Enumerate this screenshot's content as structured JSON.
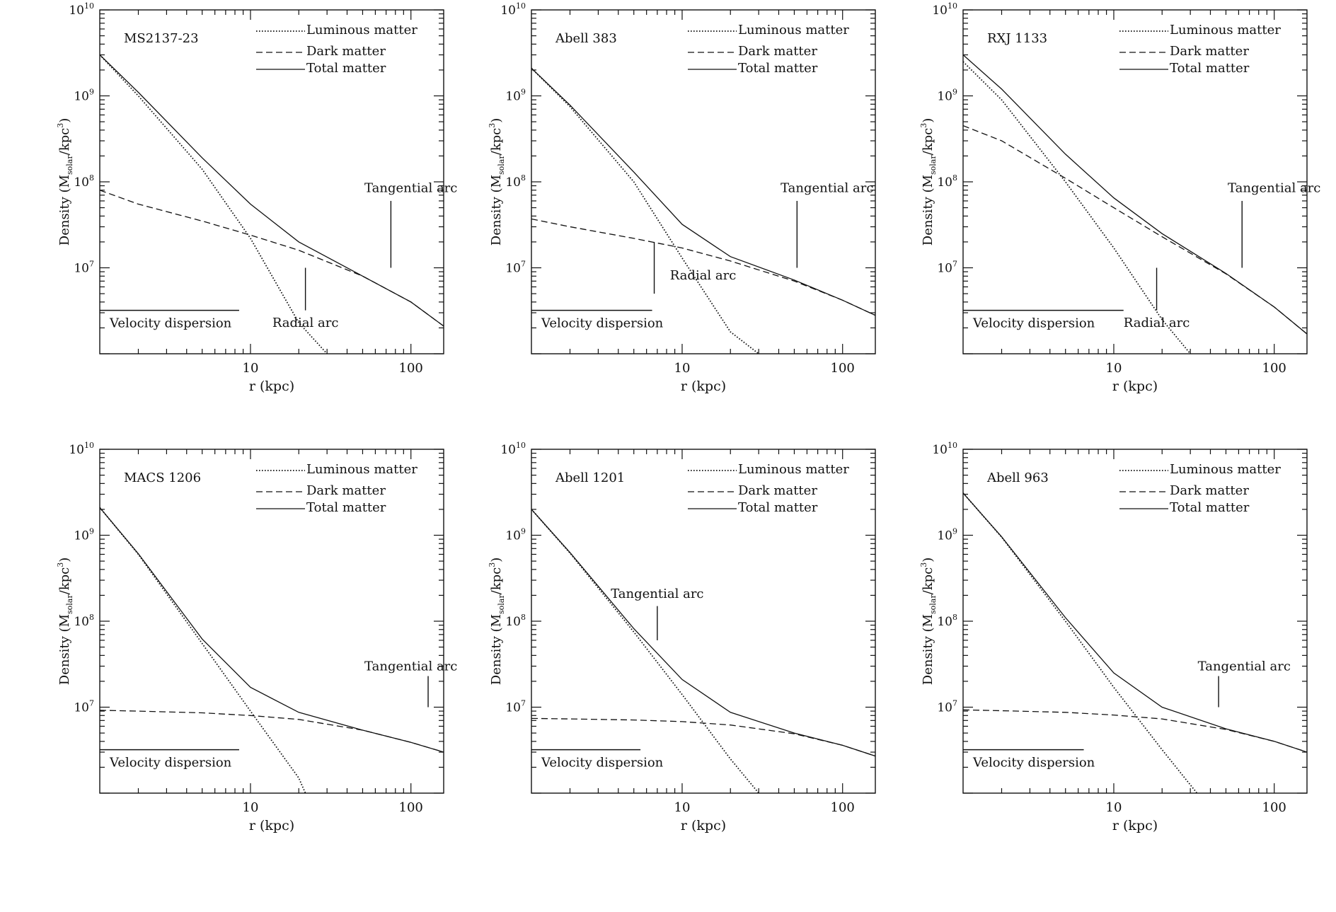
{
  "figure": {
    "xlabel": "r (kpc)",
    "ylabel_main": "Density",
    "ylabel_unit_open": "(M",
    "ylabel_unit_sub": "solar",
    "ylabel_unit_mid": "/kpc",
    "ylabel_unit_sup": "3",
    "ylabel_unit_close": ")",
    "legend": [
      "Luminous matter",
      "Dark matter",
      "Total matter"
    ],
    "velocity_label": "Velocity dispersion"
  },
  "chart_data": [
    {
      "type": "line",
      "title": "MS2137-23",
      "xscale": "log",
      "yscale": "log",
      "xlim": [
        1.15,
        160
      ],
      "ylim": [
        1000000,
        10000000000
      ],
      "xticks": [
        10,
        100
      ],
      "yticks": [
        10000000,
        100000000,
        1000000000,
        10000000000
      ],
      "series": [
        {
          "name": "Luminous matter",
          "style": "dotted",
          "x": [
            1.15,
            2,
            5,
            10,
            20,
            30
          ],
          "y": [
            3000000000,
            1000000000,
            140000000,
            22000000,
            2300000,
            1000000
          ]
        },
        {
          "name": "Dark matter",
          "style": "dashed",
          "x": [
            1.15,
            2,
            5,
            10,
            20,
            50,
            100,
            160
          ],
          "y": [
            80000000,
            55000000,
            35000000,
            24000000,
            16000000,
            8000000,
            4000000,
            2100000
          ]
        },
        {
          "name": "Total matter",
          "style": "solid",
          "x": [
            1.15,
            2,
            5,
            10,
            20,
            50,
            100,
            160
          ],
          "y": [
            3000000000,
            1100000000,
            190000000,
            55000000,
            20000000,
            8000000,
            4000000,
            2100000
          ]
        }
      ],
      "velocity_dispersion": {
        "label": "Velocity dispersion",
        "x": [
          1.15,
          8.5
        ],
        "y": 3200000
      },
      "arcs": [
        {
          "label": "Tangential arc",
          "x": 75,
          "y_range": [
            10000000,
            60000000
          ],
          "label_x": 100,
          "label_y": 85000000
        },
        {
          "label": "Radial arc",
          "x": 22,
          "y_range": [
            3200000,
            10000000
          ],
          "label_x": 22,
          "label_y": 2300000
        }
      ]
    },
    {
      "type": "line",
      "title": "Abell 383",
      "xscale": "log",
      "yscale": "log",
      "xlim": [
        1.15,
        160
      ],
      "ylim": [
        1000000,
        10000000000
      ],
      "xticks": [
        10,
        100
      ],
      "yticks": [
        10000000,
        100000000,
        1000000000,
        10000000000
      ],
      "series": [
        {
          "name": "Luminous matter",
          "style": "dotted",
          "x": [
            1.15,
            2,
            5,
            10,
            20,
            30
          ],
          "y": [
            2100000000,
            750000000,
            100000000,
            13000000,
            1800000,
            1000000
          ]
        },
        {
          "name": "Dark matter",
          "style": "dashed",
          "x": [
            1.15,
            2,
            5,
            10,
            20,
            50,
            100,
            160
          ],
          "y": [
            37000000,
            30000000,
            22000000,
            17000000,
            12000000,
            7000000,
            4200000,
            2800000
          ]
        },
        {
          "name": "Total matter",
          "style": "solid",
          "x": [
            1.15,
            2,
            5,
            10,
            20,
            50,
            100,
            160
          ],
          "y": [
            2100000000,
            780000000,
            130000000,
            32000000,
            13500000,
            7200000,
            4200000,
            2800000
          ]
        }
      ],
      "velocity_dispersion": {
        "label": "Velocity dispersion",
        "x": [
          1.15,
          6.5
        ],
        "y": 3200000
      },
      "arcs": [
        {
          "label": "Tangential arc",
          "x": 52,
          "y_range": [
            10000000,
            60000000
          ],
          "label_x": 80,
          "label_y": 85000000
        },
        {
          "label": "Radial arc",
          "x": 6.7,
          "y_range": [
            5000000,
            20000000
          ],
          "label_x": 13.5,
          "label_y": 8200000
        }
      ]
    },
    {
      "type": "line",
      "title": "RXJ 1133",
      "xscale": "log",
      "yscale": "log",
      "xlim": [
        1.15,
        160
      ],
      "ylim": [
        1000000,
        10000000000
      ],
      "xticks": [
        10,
        100
      ],
      "yticks": [
        10000000,
        100000000,
        1000000000,
        10000000000
      ],
      "series": [
        {
          "name": "Luminous matter",
          "style": "dotted",
          "x": [
            1.15,
            2,
            5,
            10,
            20,
            30
          ],
          "y": [
            2500000000,
            900000000,
            100000000,
            17000000,
            2500000,
            1000000
          ]
        },
        {
          "name": "Dark matter",
          "style": "dashed",
          "x": [
            1.15,
            2,
            5,
            10,
            20,
            50,
            100,
            160
          ],
          "y": [
            450000000,
            300000000,
            110000000,
            50000000,
            23000000,
            8500000,
            3500000,
            1700000
          ]
        },
        {
          "name": "Total matter",
          "style": "solid",
          "x": [
            1.15,
            2,
            5,
            10,
            20,
            50,
            100,
            160
          ],
          "y": [
            3000000000,
            1200000000,
            210000000,
            65000000,
            25000000,
            8600000,
            3500000,
            1700000
          ]
        }
      ],
      "velocity_dispersion": {
        "label": "Velocity dispersion",
        "x": [
          1.15,
          11.5
        ],
        "y": 3200000
      },
      "arcs": [
        {
          "label": "Tangential arc",
          "x": 63,
          "y_range": [
            10000000,
            60000000
          ],
          "label_x": 100,
          "label_y": 85000000
        },
        {
          "label": "Radial arc",
          "x": 18.5,
          "y_range": [
            3200000,
            10000000
          ],
          "label_x": 18.5,
          "label_y": 2300000
        }
      ]
    },
    {
      "type": "line",
      "title": "MACS 1206",
      "xscale": "log",
      "yscale": "log",
      "xlim": [
        1.15,
        160
      ],
      "ylim": [
        1000000,
        10000000000
      ],
      "xticks": [
        10,
        100
      ],
      "yticks": [
        10000000,
        100000000,
        1000000000,
        10000000000
      ],
      "series": [
        {
          "name": "Luminous matter",
          "style": "dotted",
          "x": [
            1.15,
            2,
            5,
            10,
            20,
            22
          ],
          "y": [
            2100000000,
            600000000,
            55000000,
            9000000,
            1500000,
            1000000
          ]
        },
        {
          "name": "Dark matter",
          "style": "dashed",
          "x": [
            1.15,
            2,
            5,
            10,
            20,
            50,
            100,
            160
          ],
          "y": [
            9200000,
            9000000,
            8600000,
            8000000,
            7200000,
            5400000,
            3900000,
            3000000
          ]
        },
        {
          "name": "Total matter",
          "style": "solid",
          "x": [
            1.15,
            2,
            5,
            10,
            20,
            50,
            100,
            160
          ],
          "y": [
            2100000000,
            610000000,
            62000000,
            17000000,
            8700000,
            5400000,
            3900000,
            3000000
          ]
        }
      ],
      "velocity_dispersion": {
        "label": "Velocity dispersion",
        "x": [
          1.15,
          8.5
        ],
        "y": 3200000
      },
      "arcs": [
        {
          "label": "Tangential arc",
          "x": 128,
          "y_range": [
            10000000,
            23000000
          ],
          "label_x": 100,
          "label_y": 30000000
        }
      ]
    },
    {
      "type": "line",
      "title": "Abell 1201",
      "xscale": "log",
      "yscale": "log",
      "xlim": [
        1.15,
        160
      ],
      "ylim": [
        1000000,
        10000000000
      ],
      "xticks": [
        10,
        100
      ],
      "yticks": [
        10000000,
        100000000,
        1000000000,
        10000000000
      ],
      "series": [
        {
          "name": "Luminous matter",
          "style": "dotted",
          "x": [
            1.15,
            2,
            5,
            10,
            20,
            30
          ],
          "y": [
            2000000000,
            620000000,
            75000000,
            14000000,
            2500000,
            1000000
          ]
        },
        {
          "name": "Dark matter",
          "style": "dashed",
          "x": [
            1.15,
            2,
            5,
            10,
            20,
            50,
            100,
            160
          ],
          "y": [
            7400000,
            7300000,
            7100000,
            6800000,
            6200000,
            4900000,
            3600000,
            2700000
          ]
        },
        {
          "name": "Total matter",
          "style": "solid",
          "x": [
            1.15,
            2,
            5,
            10,
            20,
            50,
            100,
            160
          ],
          "y": [
            2000000000,
            630000000,
            82000000,
            21000000,
            8700000,
            5000000,
            3600000,
            2700000
          ]
        }
      ],
      "velocity_dispersion": {
        "label": "Velocity dispersion",
        "x": [
          1.15,
          5.5
        ],
        "y": 3200000
      },
      "arcs": [
        {
          "label": "Tangential arc",
          "x": 7,
          "y_range": [
            60000000,
            150000000
          ],
          "label_x": 7,
          "label_y": 210000000
        }
      ]
    },
    {
      "type": "line",
      "title": "Abell 963",
      "xscale": "log",
      "yscale": "log",
      "xlim": [
        1.15,
        160
      ],
      "ylim": [
        1000000,
        10000000000
      ],
      "xticks": [
        10,
        100
      ],
      "yticks": [
        10000000,
        100000000,
        1000000000,
        10000000000
      ],
      "series": [
        {
          "name": "Luminous matter",
          "style": "dotted",
          "x": [
            1.15,
            2,
            5,
            10,
            20,
            33
          ],
          "y": [
            3100000000,
            950000000,
            100000000,
            17000000,
            3200000,
            1000000
          ]
        },
        {
          "name": "Dark matter",
          "style": "dashed",
          "x": [
            1.15,
            2,
            5,
            10,
            20,
            50,
            100,
            160
          ],
          "y": [
            9300000,
            9100000,
            8700000,
            8100000,
            7300000,
            5500000,
            4000000,
            3000000
          ]
        },
        {
          "name": "Total matter",
          "style": "solid",
          "x": [
            1.15,
            2,
            5,
            10,
            20,
            50,
            100,
            160
          ],
          "y": [
            3100000000,
            960000000,
            110000000,
            25000000,
            10000000,
            5600000,
            4000000,
            3000000
          ]
        }
      ],
      "velocity_dispersion": {
        "label": "Velocity dispersion",
        "x": [
          1.15,
          6.5
        ],
        "y": 3200000
      },
      "arcs": [
        {
          "label": "Tangential arc",
          "x": 45,
          "y_range": [
            10000000,
            23000000
          ],
          "label_x": 65,
          "label_y": 30000000
        }
      ]
    }
  ]
}
